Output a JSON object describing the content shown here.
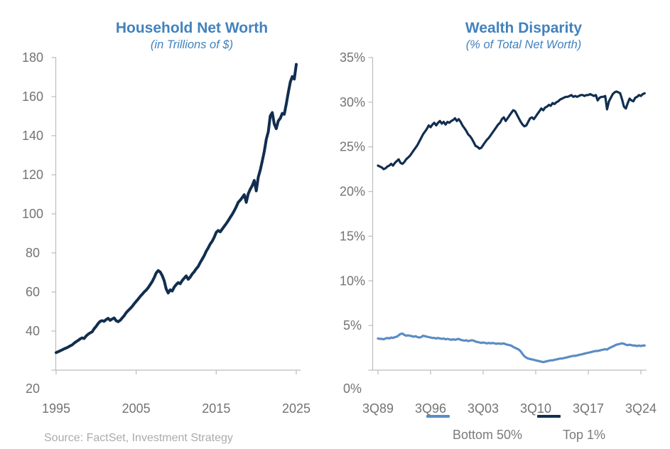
{
  "source_note": "Source: FactSet, Investment Strategy",
  "colors": {
    "title_blue": "#4282bd",
    "navy_line": "#112e4f",
    "steel_blue_line": "#5a8cc4",
    "axis_gray": "#bcbcbc",
    "label_gray": "#737373"
  },
  "chart_data": [
    {
      "type": "line",
      "title": "Household Net Worth",
      "subtitle": "(in Trillions of $)",
      "xlabel": "",
      "ylabel": "",
      "xlim": [
        1995,
        2025
      ],
      "ylim": [
        20,
        180
      ],
      "grid": false,
      "x_ticks": [
        {
          "label": "1995",
          "value": 1995
        },
        {
          "label": "2005",
          "value": 2005
        },
        {
          "label": "2015",
          "value": 2015
        },
        {
          "label": "2025",
          "value": 2025
        }
      ],
      "y_ticks": [
        {
          "label": "180",
          "value": 180
        },
        {
          "label": "160",
          "value": 160
        },
        {
          "label": "140",
          "value": 140
        },
        {
          "label": "120",
          "value": 120
        },
        {
          "label": "100",
          "value": 100
        },
        {
          "label": "80",
          "value": 80
        },
        {
          "label": "60",
          "value": 60
        },
        {
          "label": "40",
          "value": 40
        },
        {
          "label": "20",
          "value": 20
        }
      ],
      "x_start": 1995.0,
      "x_step": 0.25,
      "series": [
        {
          "name": "Household Net Worth",
          "color": "#112e4f",
          "width": 4,
          "values": [
            29.0,
            29.4,
            29.9,
            30.4,
            30.9,
            31.3,
            31.8,
            32.4,
            32.9,
            33.8,
            34.6,
            35.2,
            36.0,
            36.5,
            36.2,
            37.5,
            38.4,
            39.1,
            39.6,
            41.2,
            42.4,
            43.9,
            45.0,
            45.3,
            45.0,
            45.9,
            46.5,
            45.5,
            46.2,
            46.7,
            45.3,
            44.8,
            45.5,
            46.7,
            47.9,
            49.4,
            50.5,
            51.5,
            52.6,
            54.0,
            55.2,
            56.4,
            57.7,
            58.8,
            60.0,
            61.0,
            62.2,
            63.8,
            65.3,
            67.3,
            69.7,
            71.0,
            70.2,
            68.4,
            65.8,
            61.6,
            59.5,
            61.1,
            60.5,
            62.5,
            63.8,
            64.8,
            64.2,
            65.9,
            67.1,
            68.2,
            66.5,
            67.6,
            69.2,
            70.4,
            71.9,
            73.1,
            75.1,
            76.8,
            78.6,
            80.9,
            82.6,
            84.6,
            86.0,
            88.0,
            90.5,
            91.5,
            90.8,
            92.2,
            93.6,
            95.0,
            96.5,
            98.2,
            99.8,
            101.6,
            103.6,
            105.9,
            107.0,
            108.4,
            109.8,
            105.9,
            110.3,
            112.6,
            114.4,
            117.1,
            111.8,
            118.8,
            122.4,
            127.0,
            131.8,
            138.2,
            142.0,
            150.2,
            151.8,
            146.0,
            143.6,
            147.6,
            148.9,
            151.4,
            151.0,
            156.2,
            162.0,
            167.5,
            170.3,
            169.0,
            176.5
          ]
        }
      ]
    },
    {
      "type": "line",
      "title": "Wealth Disparity",
      "subtitle": "(% of Total Net Worth)",
      "xlabel": "",
      "ylabel": "",
      "xlim": [
        1989.75,
        2024.75
      ],
      "ylim": [
        0,
        35
      ],
      "grid": false,
      "legend_position": "bottom",
      "x_ticks": [
        {
          "label": "3Q89",
          "value": 1989.75
        },
        {
          "label": "3Q96",
          "value": 1996.75
        },
        {
          "label": "3Q03",
          "value": 2003.75
        },
        {
          "label": "3Q10",
          "value": 2010.75
        },
        {
          "label": "3Q17",
          "value": 2017.75
        },
        {
          "label": "3Q24",
          "value": 2024.75
        }
      ],
      "y_ticks": [
        {
          "label": "35%",
          "value": 35
        },
        {
          "label": "30%",
          "value": 30
        },
        {
          "label": "25%",
          "value": 25
        },
        {
          "label": "20%",
          "value": 20
        },
        {
          "label": "15%",
          "value": 15
        },
        {
          "label": "10%",
          "value": 10
        },
        {
          "label": "5%",
          "value": 5
        },
        {
          "label": "0%",
          "value": 0
        }
      ],
      "x_start": 1989.75,
      "x_step": 0.25,
      "legend": [
        {
          "label": "Bottom 50%",
          "color": "#5a8cc4"
        },
        {
          "label": "Top 1%",
          "color": "#112e4f"
        }
      ],
      "series": [
        {
          "name": "Bottom 50%",
          "color": "#5a8cc4",
          "width": 3.2,
          "values": [
            3.55,
            3.5,
            3.5,
            3.45,
            3.55,
            3.6,
            3.55,
            3.65,
            3.6,
            3.7,
            3.75,
            3.9,
            4.05,
            4.1,
            3.95,
            3.85,
            3.9,
            3.85,
            3.8,
            3.75,
            3.8,
            3.7,
            3.65,
            3.7,
            3.85,
            3.8,
            3.75,
            3.7,
            3.65,
            3.6,
            3.6,
            3.55,
            3.6,
            3.55,
            3.5,
            3.55,
            3.45,
            3.5,
            3.45,
            3.4,
            3.45,
            3.4,
            3.45,
            3.5,
            3.4,
            3.35,
            3.3,
            3.35,
            3.25,
            3.3,
            3.35,
            3.3,
            3.2,
            3.15,
            3.1,
            3.05,
            3.1,
            3.05,
            3.0,
            3.05,
            3.0,
            3.05,
            3.0,
            2.95,
            3.0,
            2.95,
            2.95,
            3.0,
            2.9,
            2.85,
            2.8,
            2.75,
            2.6,
            2.5,
            2.4,
            2.3,
            2.1,
            1.8,
            1.55,
            1.4,
            1.3,
            1.25,
            1.2,
            1.15,
            1.1,
            1.05,
            1.0,
            0.95,
            0.9,
            0.95,
            1.0,
            1.05,
            1.1,
            1.1,
            1.15,
            1.2,
            1.25,
            1.3,
            1.3,
            1.35,
            1.4,
            1.45,
            1.5,
            1.55,
            1.6,
            1.6,
            1.65,
            1.7,
            1.75,
            1.8,
            1.85,
            1.9,
            1.95,
            2.0,
            2.05,
            2.1,
            2.15,
            2.15,
            2.2,
            2.25,
            2.3,
            2.35,
            2.3,
            2.45,
            2.55,
            2.65,
            2.75,
            2.85,
            2.9,
            2.95,
            3.0,
            2.95,
            2.85,
            2.8,
            2.85,
            2.8,
            2.75,
            2.75,
            2.7,
            2.75,
            2.7,
            2.75,
            2.75
          ]
        },
        {
          "name": "Top 1%",
          "color": "#112e4f",
          "width": 3.2,
          "values": [
            22.9,
            22.8,
            22.7,
            22.5,
            22.6,
            22.8,
            22.9,
            23.1,
            22.9,
            23.2,
            23.4,
            23.6,
            23.2,
            23.1,
            23.3,
            23.6,
            23.8,
            24.0,
            24.3,
            24.6,
            24.9,
            25.2,
            25.6,
            26.0,
            26.4,
            26.7,
            27.0,
            27.4,
            27.2,
            27.5,
            27.7,
            27.4,
            27.7,
            27.9,
            27.6,
            27.8,
            27.5,
            27.8,
            27.7,
            27.9,
            28.0,
            28.2,
            27.9,
            28.1,
            27.8,
            27.4,
            27.1,
            26.8,
            26.4,
            26.2,
            25.9,
            25.5,
            25.1,
            25.0,
            24.8,
            24.9,
            25.2,
            25.5,
            25.8,
            26.0,
            26.3,
            26.6,
            26.9,
            27.2,
            27.5,
            27.7,
            28.1,
            28.3,
            27.9,
            28.2,
            28.5,
            28.8,
            29.1,
            29.0,
            28.6,
            28.2,
            27.8,
            27.5,
            27.3,
            27.4,
            27.8,
            28.2,
            28.3,
            28.1,
            28.4,
            28.7,
            29.0,
            29.3,
            29.1,
            29.4,
            29.5,
            29.7,
            29.6,
            29.9,
            29.8,
            30.0,
            30.1,
            30.3,
            30.4,
            30.5,
            30.6,
            30.6,
            30.7,
            30.8,
            30.6,
            30.7,
            30.6,
            30.7,
            30.8,
            30.8,
            30.7,
            30.8,
            30.8,
            30.9,
            30.8,
            30.7,
            30.8,
            30.2,
            30.5,
            30.6,
            30.6,
            30.7,
            29.2,
            30.1,
            30.5,
            30.9,
            31.1,
            31.2,
            31.1,
            31.0,
            30.3,
            29.5,
            29.3,
            29.9,
            30.4,
            30.2,
            30.1,
            30.5,
            30.6,
            30.8,
            30.7,
            30.9,
            31.0
          ]
        }
      ]
    }
  ]
}
